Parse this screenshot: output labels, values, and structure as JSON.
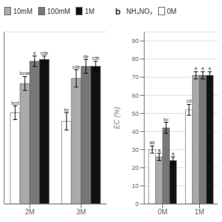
{
  "chart_data": [
    {
      "type": "bar",
      "categories": [
        "2M",
        "3M"
      ],
      "series": [
        {
          "name": "0M",
          "color": "#ffffff",
          "values": [
            53,
            48
          ],
          "errors": [
            4,
            5
          ],
          "letters": [
            "bcd",
            "bc"
          ]
        },
        {
          "name": "10mM",
          "color": "#aaaaaa",
          "values": [
            70,
            73
          ],
          "errors": [
            4,
            5
          ],
          "letters": [
            "bcde",
            "cde"
          ]
        },
        {
          "name": "100mM",
          "color": "#777777",
          "values": [
            83,
            80
          ],
          "errors": [
            3,
            4
          ],
          "letters": [
            "e",
            "de"
          ]
        },
        {
          "name": "1M",
          "color": "#111111",
          "values": [
            84,
            80
          ],
          "errors": [
            2,
            3
          ],
          "letters": [
            "cde",
            "cde"
          ]
        }
      ],
      "ylim": [
        0,
        100
      ],
      "yticks": [
        0,
        20,
        40,
        60,
        80,
        100
      ],
      "grid": true,
      "tick_labels": "x",
      "legend": "top",
      "legend_series": [
        "10mM",
        "100mM",
        "1M"
      ]
    },
    {
      "type": "bar",
      "title": "b",
      "categories": [
        "0M",
        "1M"
      ],
      "series": [
        {
          "name": "0M",
          "color": "#ffffff",
          "values": [
            30,
            52
          ],
          "errors": [
            2,
            3
          ],
          "letters": [
            "ab",
            "cd"
          ]
        },
        {
          "name": "10mM",
          "color": "#aaaaaa",
          "values": [
            26,
            71
          ],
          "errors": [
            2,
            2
          ],
          "letters": [
            "a",
            "e"
          ]
        },
        {
          "name": "100mM",
          "color": "#777777",
          "values": [
            42,
            71
          ],
          "errors": [
            3,
            2
          ],
          "letters": [
            "bc",
            "e"
          ]
        },
        {
          "name": "1M",
          "color": "#111111",
          "values": [
            24,
            71
          ],
          "errors": [
            2,
            2
          ],
          "letters": [
            "a",
            "e"
          ]
        }
      ],
      "ylabel": "EC (%)",
      "ylim": [
        0,
        95
      ],
      "yticks": [
        0,
        10,
        20,
        30,
        40,
        50,
        60,
        70,
        80,
        90
      ],
      "grid": true,
      "legend": "top",
      "legend_title": "NH₄NO₃",
      "legend_series": [
        "0M"
      ]
    }
  ]
}
